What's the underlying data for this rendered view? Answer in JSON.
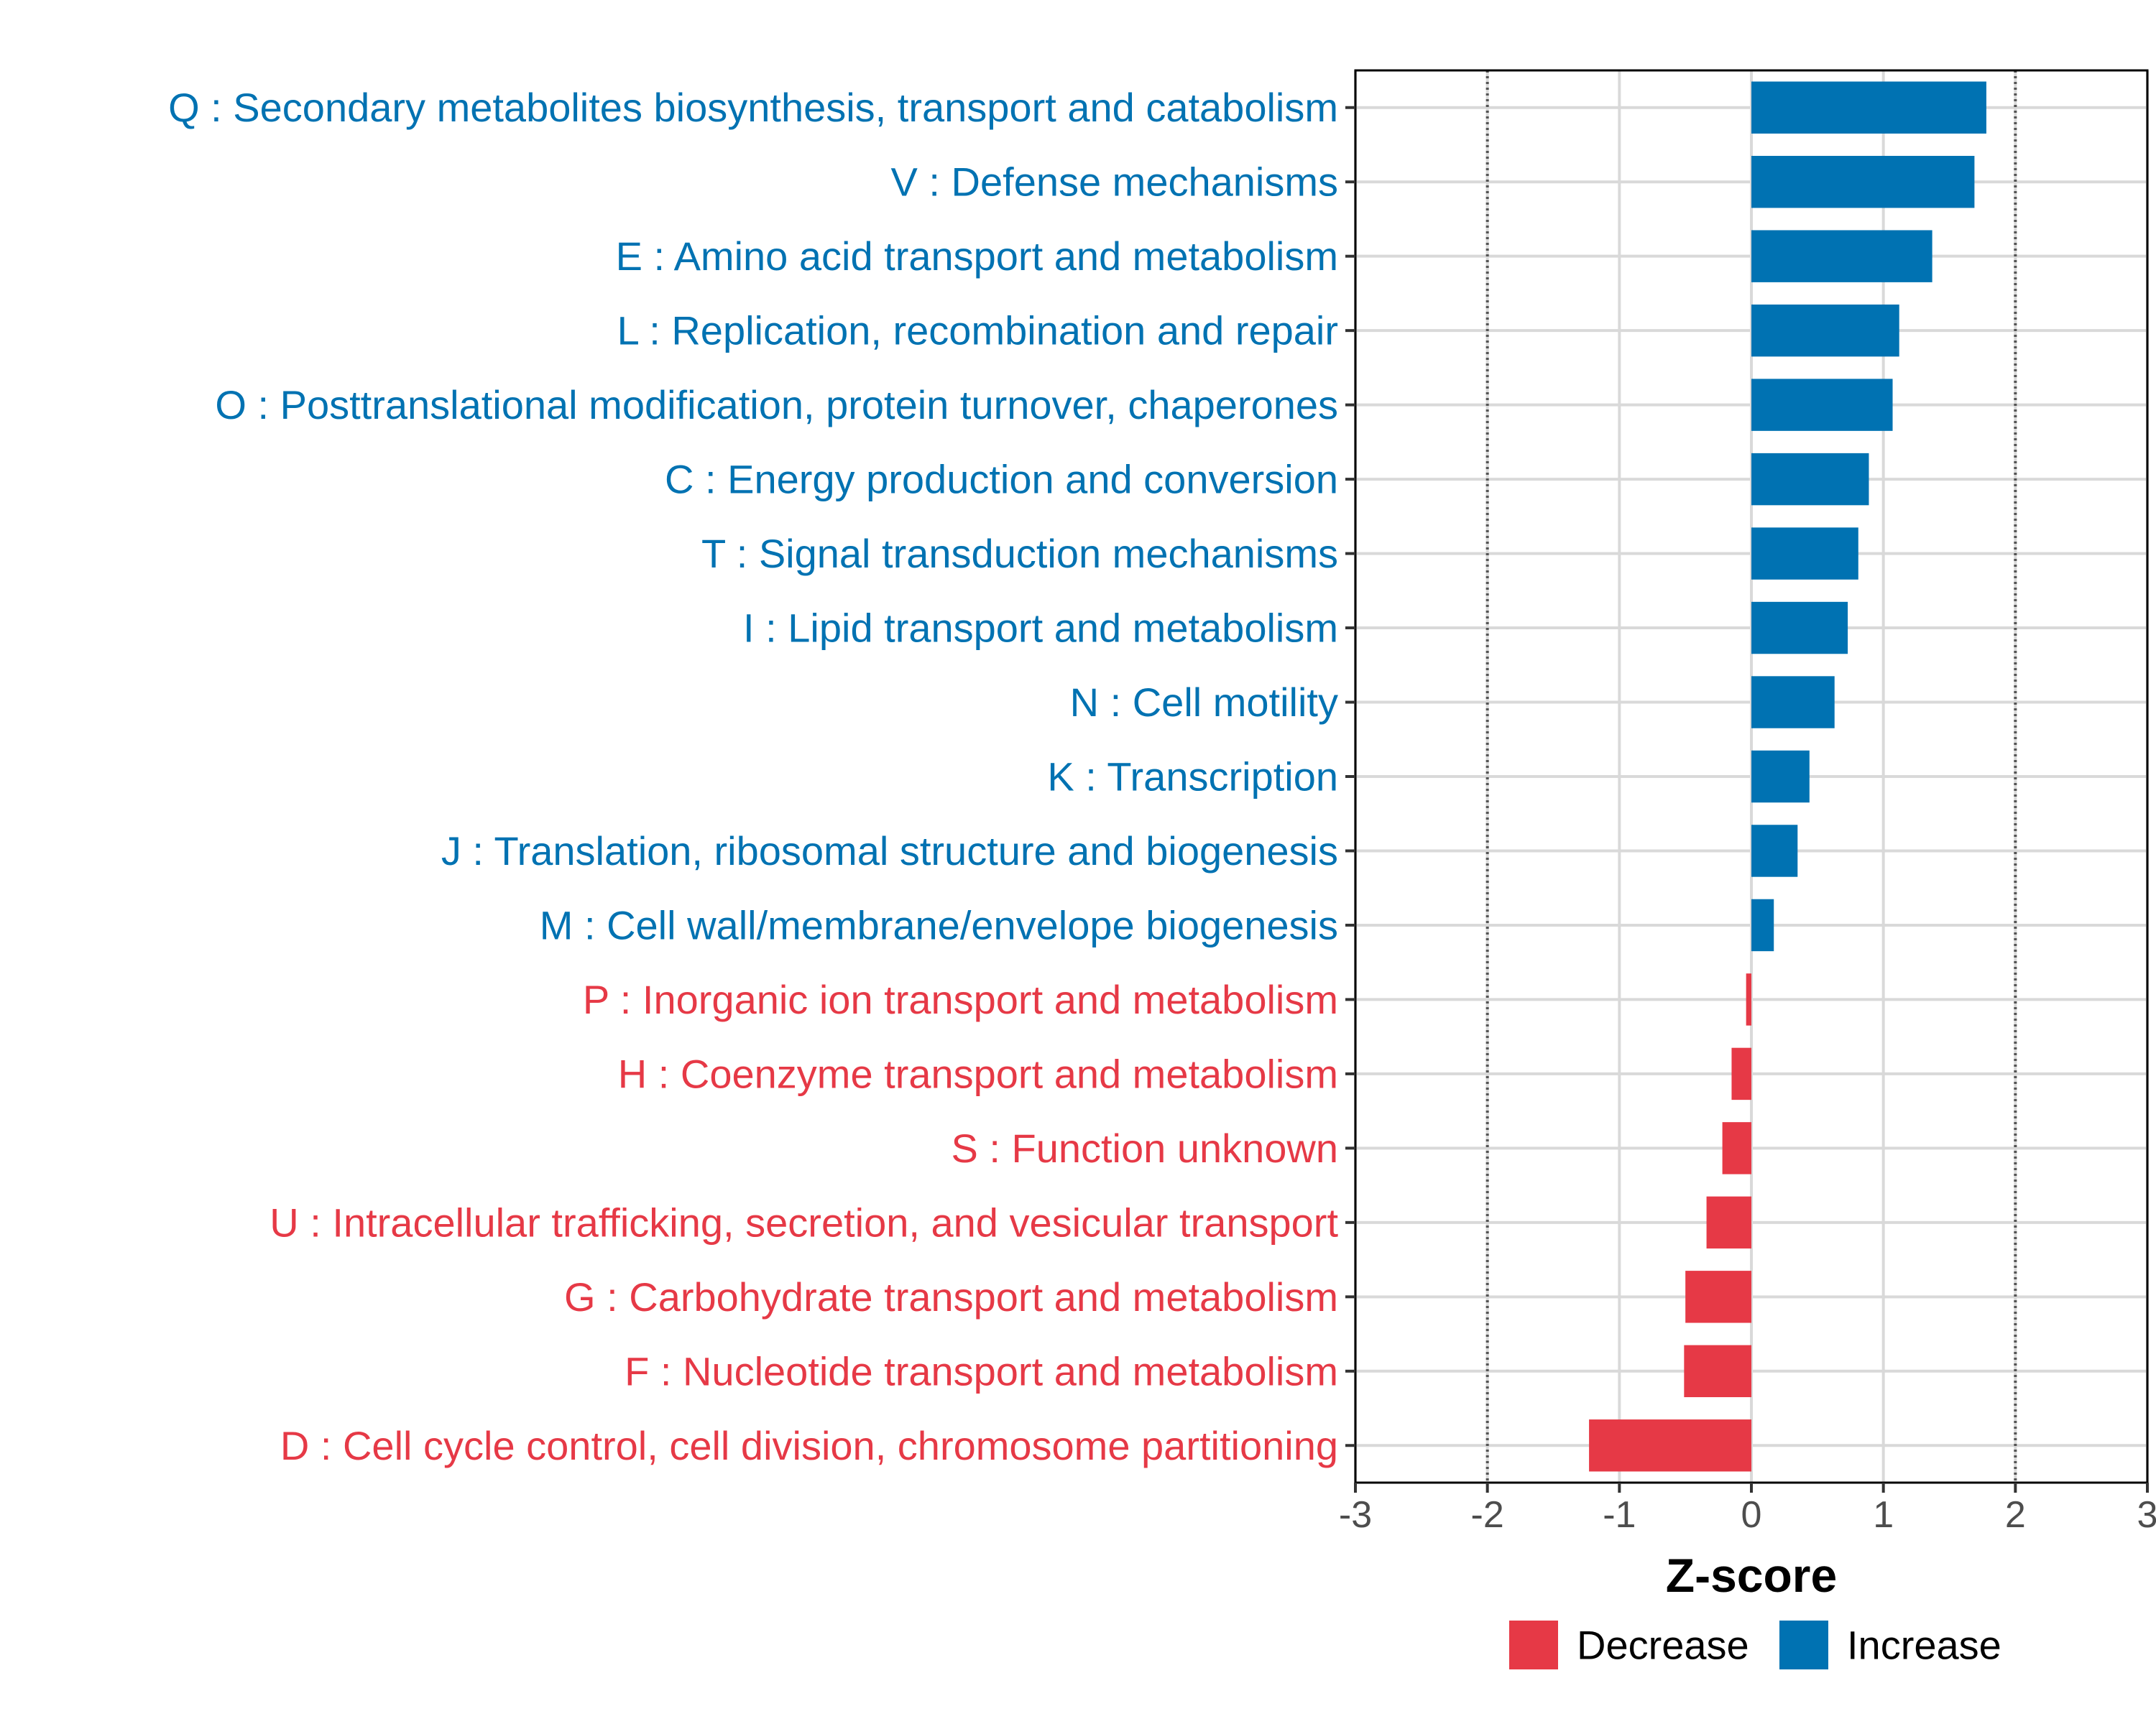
{
  "chart_data": {
    "type": "bar",
    "orientation": "horizontal",
    "xlabel": "Z-score",
    "ylabel": "",
    "xlim": [
      -3,
      3
    ],
    "xticks": [
      "-3",
      "-2",
      "-1",
      "0",
      "1",
      "2",
      "3"
    ],
    "reference_lines": [
      -2,
      2
    ],
    "grid": true,
    "colors": {
      "Increase": "#0072b2",
      "Decrease": "#e63946",
      "axis": "#000000",
      "grid": "#d9d9d9",
      "ref": "#555555"
    },
    "legend": {
      "position": "bottom",
      "entries": [
        {
          "label": "Decrease",
          "color": "#e63946"
        },
        {
          "label": "Increase",
          "color": "#0072b2"
        }
      ]
    },
    "categories": [
      "Q : Secondary metabolites biosynthesis, transport and catabolism",
      "V : Defense mechanisms",
      "E : Amino acid transport and metabolism",
      "L : Replication, recombination and repair",
      "O : Posttranslational modification, protein turnover, chaperones",
      "C : Energy production and conversion",
      "T : Signal transduction mechanisms",
      "I : Lipid transport and metabolism",
      "N : Cell motility",
      "K : Transcription",
      "J : Translation, ribosomal structure and biogenesis",
      "M : Cell wall/membrane/envelope biogenesis",
      "P : Inorganic ion transport and metabolism",
      "H : Coenzyme transport and metabolism",
      "S : Function unknown",
      "U : Intracellular trafficking, secretion, and vesicular transport",
      "G : Carbohydrate transport and metabolism",
      "F : Nucleotide transport and metabolism",
      "D : Cell cycle control, cell division, chromosome partitioning"
    ],
    "values": [
      1.78,
      1.69,
      1.37,
      1.12,
      1.07,
      0.89,
      0.81,
      0.73,
      0.63,
      0.44,
      0.35,
      0.17,
      -0.04,
      -0.15,
      -0.22,
      -0.34,
      -0.5,
      -0.51,
      -1.23
    ],
    "groups": [
      "Increase",
      "Increase",
      "Increase",
      "Increase",
      "Increase",
      "Increase",
      "Increase",
      "Increase",
      "Increase",
      "Increase",
      "Increase",
      "Increase",
      "Decrease",
      "Decrease",
      "Decrease",
      "Decrease",
      "Decrease",
      "Decrease",
      "Decrease"
    ]
  }
}
